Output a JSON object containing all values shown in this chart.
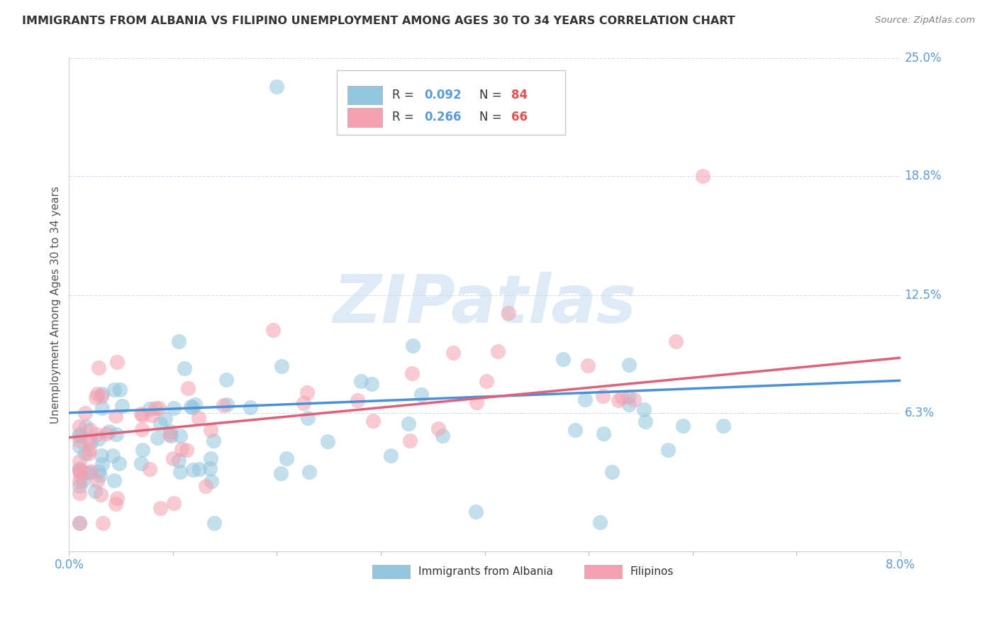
{
  "title": "IMMIGRANTS FROM ALBANIA VS FILIPINO UNEMPLOYMENT AMONG AGES 30 TO 34 YEARS CORRELATION CHART",
  "source": "Source: ZipAtlas.com",
  "ylabel": "Unemployment Among Ages 30 to 34 years",
  "xlim": [
    0.0,
    0.08
  ],
  "ylim": [
    -0.01,
    0.25
  ],
  "ytick_positions": [
    0.063,
    0.125,
    0.188,
    0.25
  ],
  "ytick_labels": [
    "6.3%",
    "12.5%",
    "18.8%",
    "25.0%"
  ],
  "legend_r1": "R = ",
  "legend_v1": "0.092",
  "legend_n1": "N = ",
  "legend_nv1": "84",
  "legend_r2": "R = ",
  "legend_v2": "0.266",
  "legend_n2": "N = ",
  "legend_nv2": "66",
  "albania_color": "#92C5DE",
  "filipino_color": "#F4A0B0",
  "albania_line_color": "#4A90D9",
  "filipino_line_color": "#E0607A",
  "title_color": "#333333",
  "source_color": "#808080",
  "axis_label_color": "#5B9BD5",
  "ylabel_color": "#555555",
  "grid_color": "#D0DCF0",
  "watermark_color": "#C8DCF0",
  "watermark": "ZIPatlas",
  "legend_color": "#5B9BD5",
  "legend_n_color": "#E05050"
}
